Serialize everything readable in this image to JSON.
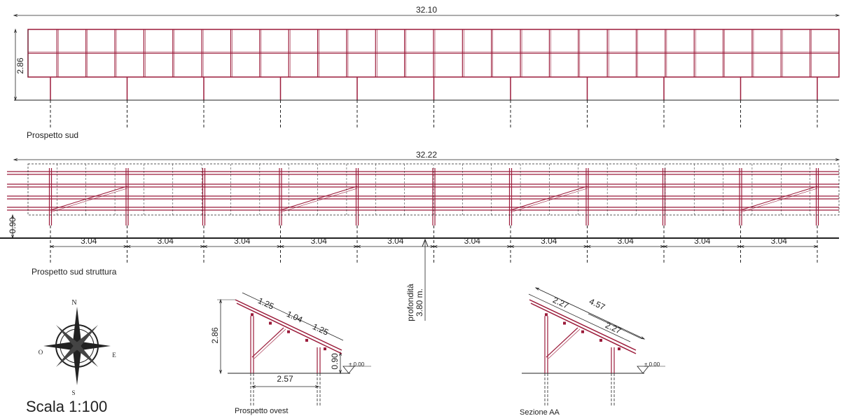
{
  "south_elevation": {
    "label": "Prospetto sud",
    "width_dim": "32.10",
    "height_dim": "2.86"
  },
  "south_structure": {
    "label": "Prospetto sud struttura",
    "width_dim": "32.22",
    "height_dim": "0.90",
    "span_dims": [
      "3.04",
      "3.04",
      "3.04",
      "3.04",
      "3.04",
      "3.04",
      "3.04",
      "3.04",
      "3.04",
      "3.04"
    ]
  },
  "depth_note": {
    "line1": "profondità",
    "line2": "3.80 m."
  },
  "compass": {
    "north": "N",
    "east": "E",
    "south": "S",
    "west": "O"
  },
  "scale": "Scala 1:100",
  "west_elevation": {
    "label": "Prospetto ovest",
    "slope_dims": [
      "1.25",
      "1.04",
      "1.25"
    ],
    "height_dim": "2.86",
    "low_height_dim": "0.90",
    "base_dim": "2.57",
    "ground_level": "± 0.00"
  },
  "section_aa": {
    "label": "Sezione AA",
    "slope_dims": [
      "2.27",
      "4.57",
      "2.27"
    ],
    "ground_level": "± 0.00"
  }
}
